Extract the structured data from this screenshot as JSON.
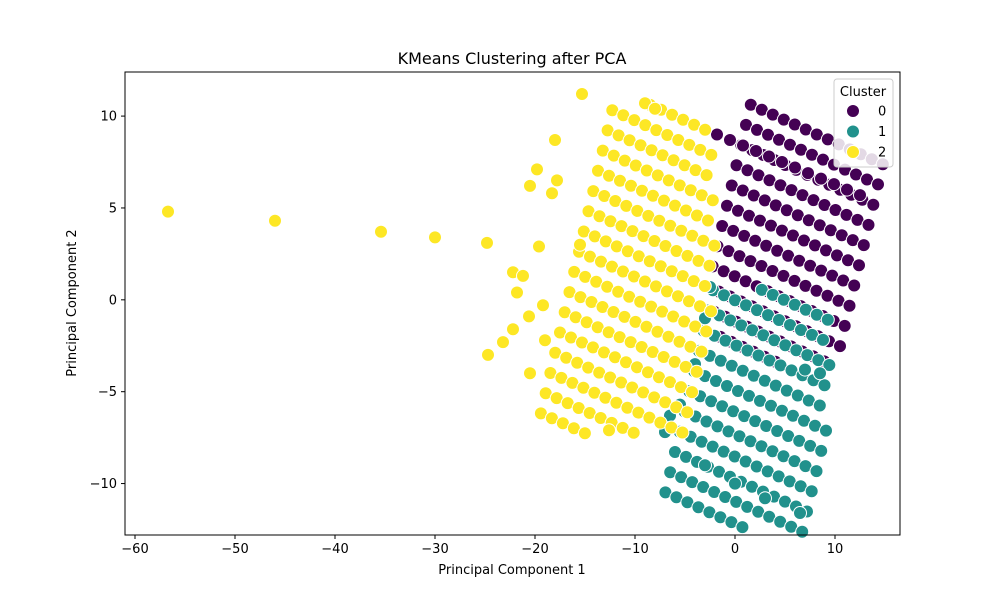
{
  "chart_data": {
    "type": "scatter",
    "title": "KMeans Clustering after PCA",
    "xlabel": "Principal Component 1",
    "ylabel": "Principal Component 2",
    "xlim": [
      -61,
      16.5
    ],
    "ylim": [
      -12.8,
      12.4
    ],
    "xticks": [
      -60,
      -50,
      -40,
      -30,
      -20,
      -10,
      0,
      10
    ],
    "yticks": [
      -10,
      -5,
      0,
      5,
      10
    ],
    "grid": false,
    "legend": {
      "title": "Cluster",
      "placement": "top-right"
    },
    "series": [
      {
        "name": "0",
        "color": "#440154",
        "grid_center": [
          5.8,
          3.5
        ],
        "grid_axes": [
          [
            1.1,
            -0.27
          ],
          [
            -0.28,
            -1.0
          ]
        ],
        "grid_range_u": [
          -6,
          6
        ],
        "grid_range_v": [
          -5,
          6
        ],
        "points": [
          [
            -1.8,
            9.0
          ],
          [
            -0.5,
            8.7
          ],
          [
            0.8,
            8.4
          ],
          [
            2.1,
            8.1
          ],
          [
            3.4,
            7.8
          ],
          [
            4.7,
            7.5
          ],
          [
            6.0,
            7.2
          ],
          [
            7.3,
            6.9
          ],
          [
            8.6,
            6.6
          ],
          [
            9.9,
            6.3
          ],
          [
            11.2,
            6.0
          ],
          [
            12.5,
            5.7
          ]
        ]
      },
      {
        "name": "1",
        "color": "#21918c",
        "grid_center": [
          2.5,
          -5.5
        ],
        "grid_axes": [
          [
            1.1,
            -0.27
          ],
          [
            -0.28,
            -1.0
          ]
        ],
        "grid_range_u": [
          -6,
          6
        ],
        "grid_range_v": [
          -5,
          6
        ],
        "points": [
          [
            -2.5,
            0.7
          ],
          [
            -3.0,
            -1.0
          ],
          [
            -4.0,
            -3.5
          ],
          [
            -5.5,
            -5.7
          ],
          [
            -6.5,
            -6.3
          ],
          [
            -7.0,
            -7.2
          ],
          [
            -3.0,
            -9.0
          ],
          [
            0.0,
            -10.0
          ],
          [
            3.0,
            -10.8
          ],
          [
            6.5,
            -11.6
          ],
          [
            8.5,
            -4.0
          ],
          [
            7.0,
            -3.8
          ]
        ]
      },
      {
        "name": "2",
        "color": "#fde725",
        "grid_center": [
          -9.0,
          1.0
        ],
        "grid_axes": [
          [
            1.1,
            -0.27
          ],
          [
            -0.28,
            -1.0
          ]
        ],
        "grid_range_u": [
          -6,
          6
        ],
        "grid_range_v": [
          -8,
          8
        ],
        "points": [
          [
            -56.7,
            4.8
          ],
          [
            -46.0,
            4.3
          ],
          [
            -35.4,
            3.7
          ],
          [
            -30.0,
            3.4
          ],
          [
            -24.8,
            3.1
          ],
          [
            -24.7,
            -3.0
          ],
          [
            -23.2,
            -2.3
          ],
          [
            -22.2,
            -1.6
          ],
          [
            -21.8,
            0.4
          ],
          [
            -22.2,
            1.5
          ],
          [
            -21.2,
            1.3
          ],
          [
            -20.6,
            -0.9
          ],
          [
            -20.5,
            6.2
          ],
          [
            -19.8,
            7.1
          ],
          [
            -19.6,
            2.9
          ],
          [
            -19.2,
            -0.3
          ],
          [
            -18.3,
            5.8
          ],
          [
            -17.8,
            6.5
          ],
          [
            -18.0,
            8.7
          ],
          [
            -15.3,
            11.2
          ],
          [
            -15.5,
            3.0
          ],
          [
            -12.6,
            -7.1
          ],
          [
            -20.5,
            -4.0
          ],
          [
            -19.0,
            -2.2
          ],
          [
            -9.0,
            10.7
          ],
          [
            -8.0,
            10.4
          ]
        ]
      }
    ]
  }
}
